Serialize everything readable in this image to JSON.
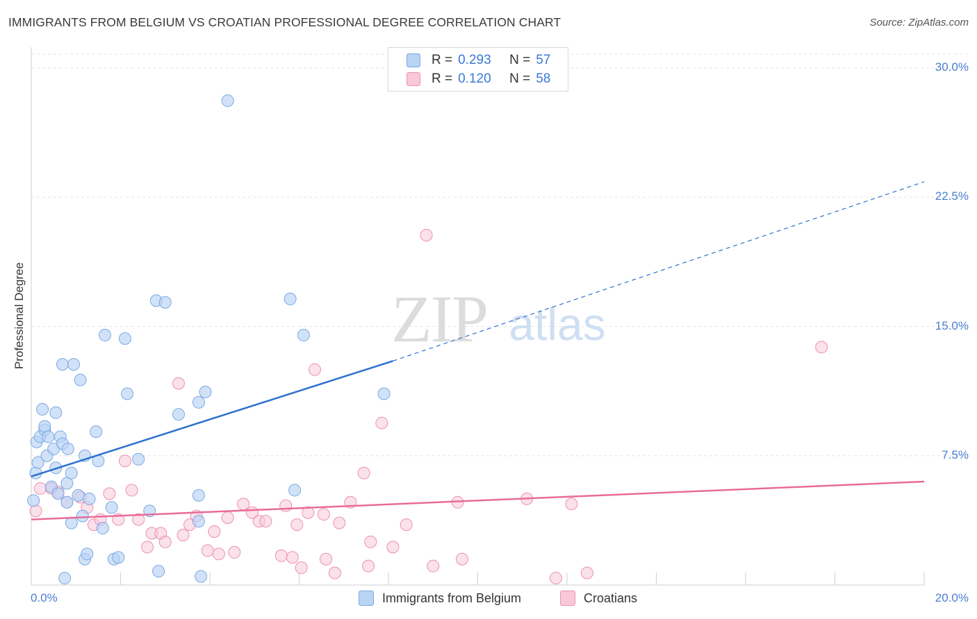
{
  "title": "IMMIGRANTS FROM BELGIUM VS CROATIAN PROFESSIONAL DEGREE CORRELATION CHART",
  "source": "Source: ZipAtlas.com",
  "watermark": {
    "zip": "ZIP",
    "atlas": "atlas"
  },
  "colors": {
    "blue_fill": "#b9d3f5",
    "blue_stroke": "#7aa9e3",
    "blue_line": "#2c6fcf",
    "pink_fill": "#f8c8d8",
    "pink_stroke": "#ec8fb0",
    "pink_line": "#e86b98",
    "tick_text": "#4a7fd0",
    "grid": "#e3e3e3"
  },
  "legend_top": [
    {
      "r_label": "R =",
      "r_value": "0.293",
      "n_label": "N =",
      "n_value": "57",
      "color": "#b9d3f5"
    },
    {
      "r_label": "R =",
      "r_value": "0.120",
      "n_label": "N =",
      "n_value": "58",
      "color": "#f8c8d8"
    }
  ],
  "chart_data": {
    "type": "scatter",
    "title": "IMMIGRANTS FROM BELGIUM VS CROATIAN PROFESSIONAL DEGREE CORRELATION CHART",
    "xlabel": "",
    "ylabel": "Professional Degree",
    "xlim": [
      0,
      20
    ],
    "ylim": [
      0,
      30
    ],
    "x_tick_labels": [
      "0.0%",
      "20.0%"
    ],
    "y_ticks": [
      7.5,
      15.0,
      22.5,
      30.0
    ],
    "y_tick_labels": [
      "7.5%",
      "15.0%",
      "22.5%",
      "30.0%"
    ],
    "grid": "horizontal dashed",
    "legend_position": "bottom",
    "series": [
      {
        "name": "Immigrants from Belgium",
        "color": "#b9d3f5",
        "trend": {
          "x": [
            0,
            8.1
          ],
          "y": [
            6.3,
            13.0
          ],
          "dashed_to": [
            20,
            23.4
          ]
        },
        "points": [
          [
            0.05,
            4.9
          ],
          [
            0.1,
            6.5
          ],
          [
            0.12,
            8.3
          ],
          [
            0.15,
            7.1
          ],
          [
            0.2,
            8.6
          ],
          [
            0.25,
            10.2
          ],
          [
            0.3,
            9.0
          ],
          [
            0.3,
            9.2
          ],
          [
            0.35,
            7.5
          ],
          [
            0.38,
            8.6
          ],
          [
            0.45,
            5.7
          ],
          [
            0.5,
            7.9
          ],
          [
            0.55,
            6.8
          ],
          [
            0.55,
            10.0
          ],
          [
            0.6,
            5.3
          ],
          [
            0.65,
            8.6
          ],
          [
            0.7,
            8.2
          ],
          [
            0.7,
            12.8
          ],
          [
            0.75,
            0.4
          ],
          [
            0.8,
            4.8
          ],
          [
            0.8,
            5.9
          ],
          [
            0.82,
            7.9
          ],
          [
            0.9,
            3.6
          ],
          [
            0.9,
            6.5
          ],
          [
            0.95,
            12.8
          ],
          [
            1.05,
            5.2
          ],
          [
            1.1,
            11.9
          ],
          [
            1.15,
            4.0
          ],
          [
            1.2,
            1.5
          ],
          [
            1.2,
            7.5
          ],
          [
            1.25,
            1.8
          ],
          [
            1.3,
            5.0
          ],
          [
            1.45,
            8.9
          ],
          [
            1.5,
            7.2
          ],
          [
            1.6,
            3.3
          ],
          [
            1.65,
            14.5
          ],
          [
            1.8,
            4.5
          ],
          [
            1.85,
            1.5
          ],
          [
            1.95,
            1.6
          ],
          [
            2.1,
            14.3
          ],
          [
            2.15,
            11.1
          ],
          [
            2.4,
            7.3
          ],
          [
            2.65,
            4.3
          ],
          [
            2.8,
            16.5
          ],
          [
            2.85,
            0.8
          ],
          [
            3.0,
            16.4
          ],
          [
            3.3,
            9.9
          ],
          [
            3.75,
            3.7
          ],
          [
            3.75,
            5.2
          ],
          [
            3.8,
            0.5
          ],
          [
            3.9,
            11.2
          ],
          [
            4.4,
            28.1
          ],
          [
            5.8,
            16.6
          ],
          [
            5.9,
            5.5
          ],
          [
            6.1,
            14.5
          ],
          [
            7.9,
            11.1
          ],
          [
            3.75,
            10.6
          ]
        ]
      },
      {
        "name": "Croatians",
        "color": "#f8c8d8",
        "trend": {
          "x": [
            0,
            20
          ],
          "y": [
            3.8,
            6.0
          ]
        },
        "points": [
          [
            0.1,
            4.3
          ],
          [
            0.2,
            5.6
          ],
          [
            0.45,
            5.6
          ],
          [
            0.6,
            5.4
          ],
          [
            0.8,
            4.8
          ],
          [
            1.1,
            5.1
          ],
          [
            1.25,
            4.5
          ],
          [
            1.4,
            3.5
          ],
          [
            1.55,
            3.8
          ],
          [
            1.75,
            5.3
          ],
          [
            1.95,
            3.8
          ],
          [
            2.1,
            7.2
          ],
          [
            2.25,
            5.5
          ],
          [
            2.4,
            3.8
          ],
          [
            2.6,
            2.2
          ],
          [
            2.7,
            3.0
          ],
          [
            2.9,
            3.0
          ],
          [
            3.0,
            2.5
          ],
          [
            3.3,
            11.7
          ],
          [
            3.4,
            2.9
          ],
          [
            3.55,
            3.5
          ],
          [
            3.7,
            4.0
          ],
          [
            3.95,
            2.0
          ],
          [
            4.1,
            3.1
          ],
          [
            4.2,
            1.8
          ],
          [
            4.4,
            3.9
          ],
          [
            4.55,
            1.9
          ],
          [
            4.75,
            4.7
          ],
          [
            4.95,
            4.2
          ],
          [
            5.1,
            3.7
          ],
          [
            5.25,
            3.7
          ],
          [
            5.6,
            1.7
          ],
          [
            5.7,
            4.6
          ],
          [
            5.85,
            1.6
          ],
          [
            5.95,
            3.5
          ],
          [
            6.05,
            1.0
          ],
          [
            6.2,
            4.2
          ],
          [
            6.55,
            4.1
          ],
          [
            6.35,
            12.5
          ],
          [
            6.8,
            0.7
          ],
          [
            6.9,
            3.6
          ],
          [
            7.15,
            4.8
          ],
          [
            7.45,
            6.5
          ],
          [
            7.55,
            1.1
          ],
          [
            7.6,
            2.5
          ],
          [
            7.85,
            9.4
          ],
          [
            8.1,
            2.2
          ],
          [
            8.4,
            3.5
          ],
          [
            8.85,
            20.3
          ],
          [
            9.0,
            1.1
          ],
          [
            9.55,
            4.8
          ],
          [
            9.65,
            1.5
          ],
          [
            11.1,
            5.0
          ],
          [
            11.75,
            0.4
          ],
          [
            12.1,
            4.7
          ],
          [
            12.45,
            0.7
          ],
          [
            17.7,
            13.8
          ],
          [
            6.6,
            1.5
          ]
        ]
      }
    ]
  },
  "legend_bottom": [
    {
      "label": "Immigrants from Belgium",
      "color": "#b9d3f5"
    },
    {
      "label": "Croatians",
      "color": "#f8c8d8"
    }
  ]
}
